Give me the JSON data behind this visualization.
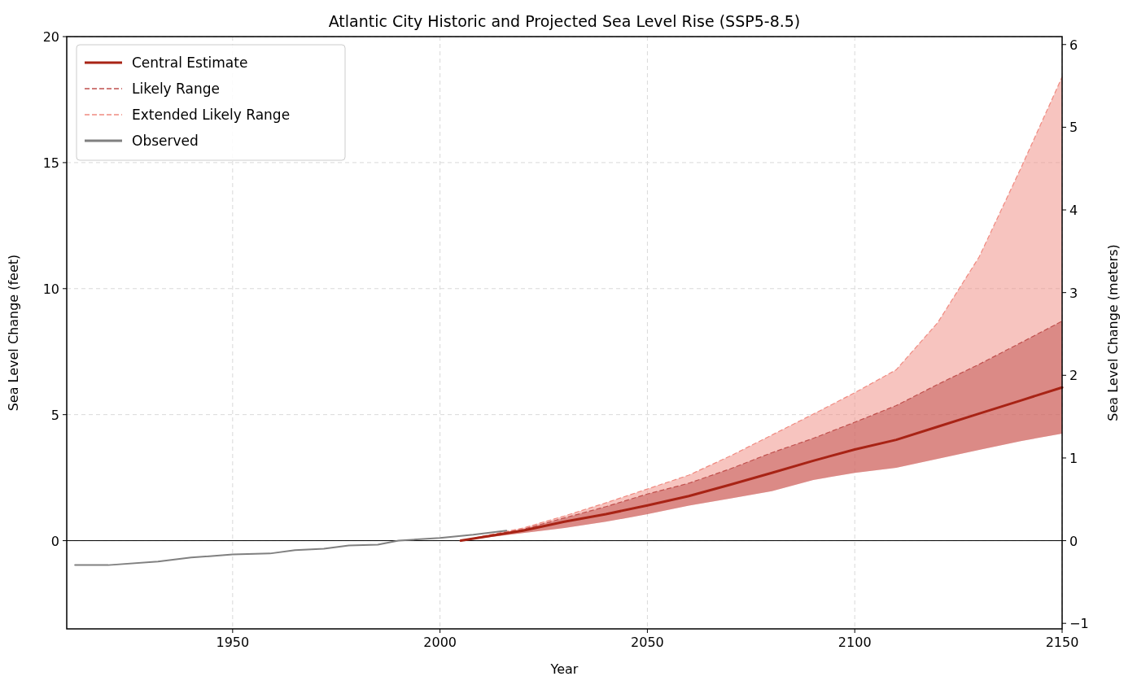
{
  "chart_data": {
    "type": "line",
    "title": "Atlantic City Historic and Projected Sea Level Rise (SSP5-8.5)",
    "xlabel": "Year",
    "ylabel": "Sea Level Change (feet)",
    "y2label": "Sea Level Change (meters)",
    "xlim": [
      1910,
      2150
    ],
    "xticks": [
      1950,
      2000,
      2050,
      2100,
      2150
    ],
    "ylim": [
      -3.5,
      20
    ],
    "yticks": [
      0,
      5,
      10,
      15,
      20
    ],
    "y2lim": [
      -1.0668,
      6.096
    ],
    "y2ticks": [
      -1,
      0,
      1,
      2,
      3,
      4,
      5,
      6
    ],
    "grid": true,
    "legend": "top left",
    "ref_lines": [
      {
        "axis": "y",
        "value": 0,
        "color": "#000000"
      }
    ],
    "series": [
      {
        "name": "Central Estimate",
        "color": "#a82315",
        "line_style": "solid",
        "x": [
          2005,
          2020,
          2030,
          2040,
          2050,
          2060,
          2070,
          2080,
          2090,
          2100,
          2110,
          2120,
          2130,
          2140,
          2150
        ],
        "values": [
          0,
          0.4,
          0.75,
          1.05,
          1.4,
          1.77,
          2.22,
          2.69,
          3.17,
          3.62,
          4.0,
          4.52,
          5.04,
          5.56,
          6.08
        ]
      },
      {
        "name": "Likely Range",
        "color": "#c0504d",
        "line_style": "dashed",
        "x": [
          2005,
          2020,
          2030,
          2040,
          2050,
          2060,
          2070,
          2080,
          2090,
          2100,
          2110,
          2120,
          2130,
          2140,
          2150
        ],
        "values": [
          0,
          0.45,
          0.9,
          1.35,
          1.85,
          2.28,
          2.85,
          3.49,
          4.06,
          4.7,
          5.36,
          6.2,
          7.0,
          7.85,
          8.71
        ],
        "lower": [
          0,
          0.3,
          0.5,
          0.75,
          1.05,
          1.39,
          1.67,
          1.96,
          2.41,
          2.69,
          2.89,
          3.25,
          3.6,
          3.95,
          4.25
        ],
        "upper": [
          0,
          0.45,
          0.9,
          1.35,
          1.85,
          2.28,
          2.85,
          3.49,
          4.06,
          4.7,
          5.36,
          6.2,
          7.0,
          7.85,
          8.71
        ]
      },
      {
        "name": "Extended Likely Range",
        "color": "#f08a80",
        "line_style": "dashed",
        "x": [
          2005,
          2020,
          2030,
          2040,
          2050,
          2060,
          2070,
          2080,
          2090,
          2100,
          2110,
          2120,
          2130,
          2140,
          2150
        ],
        "values": [
          0,
          0.5,
          0.98,
          1.5,
          2.05,
          2.6,
          3.36,
          4.19,
          5.02,
          5.87,
          6.78,
          8.65,
          11.26,
          14.76,
          18.4
        ],
        "lower": [
          0,
          0.3,
          0.5,
          0.75,
          1.05,
          1.39,
          1.67,
          1.96,
          2.41,
          2.69,
          2.89,
          3.25,
          3.6,
          3.95,
          4.25
        ],
        "upper": [
          0,
          0.5,
          0.98,
          1.5,
          2.05,
          2.6,
          3.36,
          4.19,
          5.02,
          5.87,
          6.78,
          8.65,
          11.26,
          14.76,
          18.4
        ]
      },
      {
        "name": "Observed",
        "color": "#808080",
        "line_style": "solid",
        "x": [
          1912,
          1920,
          1932,
          1940,
          1950,
          1959,
          1965,
          1972,
          1978,
          1985,
          1990,
          2000,
          2008,
          2016
        ],
        "values": [
          -0.97,
          -0.97,
          -0.83,
          -0.67,
          -0.55,
          -0.51,
          -0.38,
          -0.32,
          -0.19,
          -0.16,
          0,
          0.11,
          0.24,
          0.4
        ]
      }
    ]
  }
}
